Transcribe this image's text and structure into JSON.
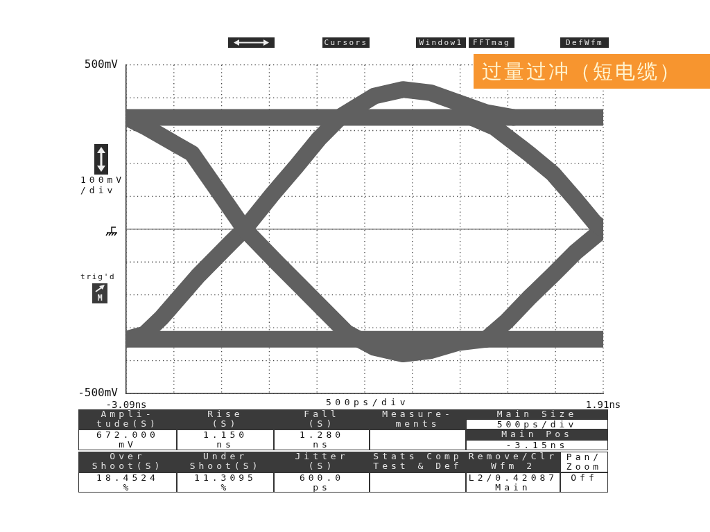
{
  "chart_data": {
    "type": "line",
    "title": "过量过冲（短电缆）",
    "xlabel": "500ps/div",
    "ylabel": "100mV\n/div",
    "xlim": [
      -3.09,
      1.91
    ],
    "xticks": [
      {
        "value": -3.09,
        "label": "-3.09ns"
      },
      {
        "value": -2.59,
        "label": null
      },
      {
        "value": -2.09,
        "label": null
      },
      {
        "value": -1.59,
        "label": null
      },
      {
        "value": -1.09,
        "label": null
      },
      {
        "value": -0.59,
        "label": null
      },
      {
        "value": -0.09,
        "label": null
      },
      {
        "value": 0.41,
        "label": null
      },
      {
        "value": 0.91,
        "label": null
      },
      {
        "value": 1.41,
        "label": null
      },
      {
        "value": 1.91,
        "label": "1.91ns"
      }
    ],
    "ylim": [
      -500,
      500
    ],
    "yticks": [
      {
        "value": -500,
        "label": "-500mV"
      },
      {
        "value": -400,
        "label": null
      },
      {
        "value": -300,
        "label": null
      },
      {
        "value": -200,
        "label": null
      },
      {
        "value": -100,
        "label": null
      },
      {
        "value": 0,
        "label": null
      },
      {
        "value": 100,
        "label": null
      },
      {
        "value": 200,
        "label": null
      },
      {
        "value": 300,
        "label": null
      },
      {
        "value": 400,
        "label": null
      },
      {
        "value": 500,
        "label": "500mV"
      }
    ],
    "grid": true,
    "marker": "none",
    "ref_lines": [
      {
        "axis": "y",
        "value": 0,
        "color": "#6e6e6e"
      }
    ],
    "series": [
      {
        "color": "#606060",
        "x": [
          -3.09,
          -2.5,
          -2.0,
          -1.5,
          -1.0,
          -0.5,
          0,
          0.5,
          1.0,
          1.5,
          1.91
        ],
        "values": [
          340,
          340,
          340,
          340,
          340,
          340,
          340,
          340,
          340,
          340,
          340
        ]
      },
      {
        "color": "#606060",
        "x": [
          -3.09,
          -2.5,
          -2.0,
          -1.5,
          -1.0,
          -0.5,
          0,
          0.5,
          1.0,
          1.5,
          1.91
        ],
        "values": [
          -335,
          -335,
          -335,
          -335,
          -335,
          -335,
          -335,
          -335,
          -335,
          -335,
          -335
        ]
      },
      {
        "color": "#606060",
        "x": [
          -3.09,
          -2.88,
          -2.4,
          -2.1,
          -1.85,
          -1.5,
          -1.26,
          -1.02,
          -0.78,
          -0.49,
          -0.19,
          0.1,
          0.39,
          0.68
        ],
        "values": [
          340,
          310,
          230,
          105,
          0,
          -105,
          -175,
          -245,
          -315,
          -360,
          -380,
          -370,
          -345,
          -335
        ]
      },
      {
        "color": "#606060",
        "x": [
          -3.09,
          -2.9,
          -2.72,
          -2.33,
          -1.99,
          -1.85,
          -1.56,
          -1.31,
          -1.07,
          -0.83,
          -0.49,
          -0.19,
          0.1,
          0.39,
          0.68,
          0.97
        ],
        "values": [
          -335,
          -320,
          -270,
          -140,
          -40,
          0,
          105,
          190,
          275,
          345,
          405,
          425,
          415,
          385,
          355,
          340
        ]
      },
      {
        "color": "#606060",
        "x": [
          0.53,
          0.77,
          1.13,
          1.38,
          1.62,
          1.82,
          1.91
        ],
        "values": [
          340,
          310,
          230,
          170,
          90,
          20,
          0
        ]
      },
      {
        "color": "#606060",
        "x": [
          0.68,
          0.9,
          1.13,
          1.38,
          1.62,
          1.91
        ],
        "values": [
          -335,
          -280,
          -210,
          -140,
          -70,
          0
        ]
      }
    ],
    "annotations": [
      "Cursors",
      "Window1",
      "FFTmag",
      "DefWfm",
      "trig'd",
      "M",
      "Ampli-\ntude(S)",
      "Rise\n(S)",
      "Fall\n(S)",
      "Measure-\nments",
      "Main Size",
      "500ps/div",
      "672.000\nmV",
      "1.150\nns",
      "1.280\nns",
      "Main Pos",
      "-3.15ns",
      "Over\nShoot(S)",
      "Under\nShoot(S)",
      "Jitter\n(S)",
      "Stats Comp\nTest & Def",
      "Remove/Clr\nWfm 2",
      "Pan/\nZoom",
      "18.4524\n%",
      "11.3095\n%",
      "600.0\nps",
      "L2/0.42087\nMain",
      "Off"
    ]
  }
}
